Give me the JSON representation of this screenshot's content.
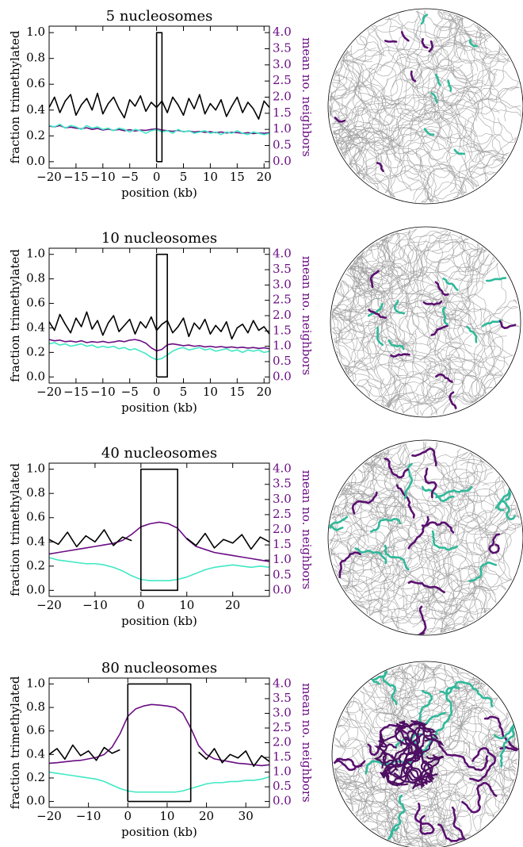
{
  "chart_data": [
    {
      "type": "line",
      "title": "5 nucleosomes",
      "xlabel": "position (kb)",
      "ylabel": "fraction trimethylated",
      "y2label": "mean no. neighbors",
      "xlim": [
        -20,
        21
      ],
      "xticks": [
        {
          "value": -20,
          "label": "−20"
        },
        {
          "value": -15,
          "label": "−15"
        },
        {
          "value": -10,
          "label": "−10"
        },
        {
          "value": -5,
          "label": "−5"
        },
        0,
        5,
        10,
        15,
        20
      ],
      "ylim": [
        -0.05,
        1.05
      ],
      "yticks": [
        {
          "value": 0,
          "label": "0.0"
        },
        0.2,
        0.4,
        0.6,
        0.8,
        {
          "value": 1,
          "label": "1.0"
        }
      ],
      "y2lim": [
        -0.2,
        4.2
      ],
      "y2ticks": [
        {
          "value": 0,
          "label": "0.0"
        },
        0.5,
        {
          "value": 1,
          "label": "1.0"
        },
        1.5,
        {
          "value": 2,
          "label": "2.0"
        },
        2.5,
        {
          "value": 3,
          "label": "3.0"
        },
        3.5,
        {
          "value": 4,
          "label": "4.0"
        }
      ],
      "x": [
        -20,
        -19,
        -18,
        -17,
        -16,
        -15,
        -14,
        -13,
        -12,
        -11,
        -10,
        -9,
        -8,
        -7,
        -6,
        -5,
        -4,
        -3,
        -2,
        -1,
        0,
        1,
        2,
        3,
        4,
        5,
        6,
        7,
        8,
        9,
        10,
        11,
        12,
        13,
        14,
        15,
        16,
        17,
        18,
        19,
        20,
        21
      ],
      "series": [
        {
          "color": "#000000",
          "values": [
            0.42,
            0.5,
            0.38,
            0.47,
            0.52,
            0.36,
            0.44,
            0.49,
            0.4,
            0.53,
            0.37,
            0.45,
            0.5,
            0.41,
            0.34,
            0.48,
            0.43,
            0.51,
            0.39,
            0.46,
            0.42,
            0.47,
            0.38,
            0.5,
            0.44,
            0.36,
            0.49,
            0.41,
            0.52,
            0.37,
            0.45,
            0.4,
            0.48,
            0.35,
            0.43,
            0.5,
            0.38,
            0.46,
            0.41,
            0.33,
            0.47,
            0.42
          ]
        },
        {
          "color": "#40e8c4",
          "values": [
            0.28,
            0.27,
            0.29,
            0.26,
            0.28,
            0.27,
            0.25,
            0.28,
            0.26,
            0.27,
            0.25,
            0.26,
            0.24,
            0.26,
            0.25,
            0.23,
            0.25,
            0.24,
            0.22,
            0.24,
            0.25,
            0.23,
            0.24,
            0.22,
            0.25,
            0.23,
            0.24,
            0.22,
            0.23,
            0.24,
            0.22,
            0.23,
            0.21,
            0.23,
            0.22,
            0.24,
            0.22,
            0.21,
            0.23,
            0.22,
            0.21,
            0.22
          ]
        },
        {
          "color": "#6a0d83",
          "axis": "y2",
          "values": [
            1.1,
            1.08,
            1.12,
            1.05,
            1.07,
            1.04,
            1.02,
            1.05,
            1.0,
            1.03,
            0.98,
            1.01,
            0.97,
            1.0,
            0.96,
            0.99,
            0.95,
            0.98,
            0.97,
            1.0,
            1.02,
            0.98,
            0.96,
            0.94,
            0.97,
            0.93,
            0.95,
            0.92,
            0.94,
            0.91,
            0.93,
            0.9,
            0.92,
            0.89,
            0.91,
            0.9,
            0.88,
            0.9,
            0.87,
            0.89,
            0.88,
            0.9
          ]
        },
        {
          "color": "#000000",
          "x": [
            0,
            0,
            1,
            1,
            0
          ],
          "values": [
            0,
            1,
            1,
            0,
            0
          ]
        }
      ]
    },
    {
      "type": "line",
      "title": "10 nucleosomes",
      "xlabel": "position (kb)",
      "ylabel": "fraction trimethylated",
      "y2label": "mean no. neighbors",
      "xlim": [
        -20,
        21
      ],
      "xticks": [
        {
          "value": -20,
          "label": "−20"
        },
        {
          "value": -15,
          "label": "−15"
        },
        {
          "value": -10,
          "label": "−10"
        },
        {
          "value": -5,
          "label": "−5"
        },
        0,
        5,
        10,
        15,
        20
      ],
      "ylim": [
        -0.05,
        1.05
      ],
      "yticks": [
        {
          "value": 0,
          "label": "0.0"
        },
        0.2,
        0.4,
        0.6,
        0.8,
        {
          "value": 1,
          "label": "1.0"
        }
      ],
      "y2lim": [
        -0.2,
        4.2
      ],
      "y2ticks": [
        {
          "value": 0,
          "label": "0.0"
        },
        0.5,
        {
          "value": 1,
          "label": "1.0"
        },
        1.5,
        {
          "value": 2,
          "label": "2.0"
        },
        2.5,
        {
          "value": 3,
          "label": "3.0"
        },
        3.5,
        {
          "value": 4,
          "label": "4.0"
        }
      ],
      "x": [
        -20,
        -19,
        -18,
        -17,
        -16,
        -15,
        -14,
        -13,
        -12,
        -11,
        -10,
        -9,
        -8,
        -7,
        -6,
        -5,
        -4,
        -3,
        -2,
        -1,
        0,
        1,
        2,
        3,
        4,
        5,
        6,
        7,
        8,
        9,
        10,
        11,
        12,
        13,
        14,
        15,
        16,
        17,
        18,
        19,
        20,
        21
      ],
      "series": [
        {
          "color": "#000000",
          "values": [
            0.45,
            0.38,
            0.51,
            0.43,
            0.36,
            0.48,
            0.41,
            0.53,
            0.39,
            0.46,
            0.34,
            0.44,
            0.5,
            0.37,
            0.42,
            0.47,
            0.35,
            0.45,
            0.4,
            0.49,
            0.38,
            0.43,
            0.46,
            0.36,
            0.41,
            0.48,
            0.33,
            0.44,
            0.39,
            0.47,
            0.35,
            0.42,
            0.37,
            0.45,
            0.31,
            0.4,
            0.43,
            0.36,
            0.46,
            0.38,
            0.41,
            0.35
          ]
        },
        {
          "color": "#40e8c4",
          "values": [
            0.27,
            0.28,
            0.26,
            0.27,
            0.25,
            0.26,
            0.27,
            0.25,
            0.26,
            0.24,
            0.25,
            0.24,
            0.25,
            0.23,
            0.24,
            0.22,
            0.23,
            0.21,
            0.19,
            0.16,
            0.14,
            0.15,
            0.18,
            0.21,
            0.23,
            0.24,
            0.22,
            0.23,
            0.24,
            0.22,
            0.23,
            0.21,
            0.22,
            0.23,
            0.21,
            0.22,
            0.2,
            0.22,
            0.21,
            0.22,
            0.2,
            0.21
          ]
        },
        {
          "color": "#6a0d83",
          "axis": "y2",
          "values": [
            1.22,
            1.18,
            1.2,
            1.15,
            1.17,
            1.14,
            1.18,
            1.12,
            1.15,
            1.13,
            1.16,
            1.12,
            1.14,
            1.18,
            1.15,
            1.2,
            1.22,
            1.18,
            1.1,
            0.95,
            0.85,
            0.9,
            1.05,
            1.08,
            1.05,
            1.02,
            1.04,
            1.0,
            1.02,
            0.98,
            1.0,
            0.97,
            0.99,
            0.96,
            0.98,
            0.95,
            0.97,
            0.94,
            0.96,
            0.93,
            0.95,
            0.92
          ]
        },
        {
          "color": "#000000",
          "x": [
            0,
            0,
            2,
            2,
            0
          ],
          "values": [
            0,
            1,
            1,
            0,
            0
          ]
        }
      ]
    },
    {
      "type": "line",
      "title": "40 nucleosomes",
      "xlabel": "position (kb)",
      "ylabel": "fraction trimethylated",
      "y2label": "mean no. neighbors",
      "xlim": [
        -20,
        28
      ],
      "xticks": [
        {
          "value": -20,
          "label": "−20"
        },
        {
          "value": -10,
          "label": "−10"
        },
        0,
        10,
        20
      ],
      "ylim": [
        -0.05,
        1.05
      ],
      "yticks": [
        {
          "value": 0,
          "label": "0.0"
        },
        0.2,
        0.4,
        0.6,
        0.8,
        {
          "value": 1,
          "label": "1.0"
        }
      ],
      "y2lim": [
        -0.2,
        4.2
      ],
      "y2ticks": [
        {
          "value": 0,
          "label": "0.0"
        },
        0.5,
        {
          "value": 1,
          "label": "1.0"
        },
        1.5,
        {
          "value": 2,
          "label": "2.0"
        },
        2.5,
        {
          "value": 3,
          "label": "3.0"
        },
        3.5,
        {
          "value": 4,
          "label": "4.0"
        }
      ],
      "x": [
        -20,
        -18,
        -16,
        -14,
        -12,
        -10,
        -8,
        -6,
        -4,
        -2,
        0,
        2,
        4,
        6,
        8,
        10,
        12,
        14,
        16,
        18,
        20,
        22,
        24,
        26,
        28
      ],
      "series": [
        {
          "color": "#000000",
          "values": [
            0.42,
            0.38,
            0.48,
            0.36,
            0.45,
            0.4,
            0.5,
            0.37,
            0.44,
            0.41,
            null,
            null,
            null,
            null,
            null,
            0.43,
            0.37,
            0.47,
            0.35,
            0.42,
            0.39,
            0.46,
            0.34,
            0.44,
            0.4
          ]
        },
        {
          "color": "#40e8c4",
          "values": [
            0.27,
            0.25,
            0.24,
            0.23,
            0.22,
            0.22,
            0.21,
            0.19,
            0.16,
            0.12,
            0.09,
            0.08,
            0.08,
            0.08,
            0.09,
            0.11,
            0.14,
            0.17,
            0.19,
            0.2,
            0.21,
            0.2,
            0.19,
            0.2,
            0.19
          ]
        },
        {
          "color": "#6a0d83",
          "axis": "y2",
          "values": [
            1.2,
            1.25,
            1.3,
            1.35,
            1.4,
            1.45,
            1.5,
            1.55,
            1.65,
            1.85,
            2.1,
            2.2,
            2.25,
            2.2,
            2.05,
            1.7,
            1.45,
            1.35,
            1.25,
            1.2,
            1.15,
            1.1,
            1.05,
            1.0,
            0.95
          ]
        },
        {
          "color": "#000000",
          "x": [
            0,
            0,
            8,
            8,
            0
          ],
          "values": [
            0,
            1,
            1,
            0,
            0
          ]
        }
      ]
    },
    {
      "type": "line",
      "title": "80 nucleosomes",
      "xlabel": "position (kb)",
      "ylabel": "fraction trimethylated",
      "y2label": "mean no. neighbors",
      "xlim": [
        -20,
        36
      ],
      "xticks": [
        {
          "value": -20,
          "label": "−20"
        },
        {
          "value": -10,
          "label": "−10"
        },
        0,
        10,
        20,
        30
      ],
      "ylim": [
        -0.05,
        1.05
      ],
      "yticks": [
        {
          "value": 0,
          "label": "0.0"
        },
        0.2,
        0.4,
        0.6,
        0.8,
        {
          "value": 1,
          "label": "1.0"
        }
      ],
      "y2lim": [
        -0.2,
        4.2
      ],
      "y2ticks": [
        {
          "value": 0,
          "label": "0.0"
        },
        0.5,
        {
          "value": 1,
          "label": "1.0"
        },
        1.5,
        {
          "value": 2,
          "label": "2.0"
        },
        2.5,
        {
          "value": 3,
          "label": "3.0"
        },
        3.5,
        {
          "value": 4,
          "label": "4.0"
        }
      ],
      "x": [
        -20,
        -18,
        -16,
        -14,
        -12,
        -10,
        -8,
        -6,
        -4,
        -2,
        0,
        2,
        4,
        6,
        8,
        10,
        12,
        14,
        16,
        18,
        20,
        22,
        24,
        26,
        28,
        30,
        32,
        34,
        36
      ],
      "series": [
        {
          "color": "#000000",
          "values": [
            0.4,
            0.45,
            0.36,
            0.48,
            0.39,
            0.43,
            0.35,
            0.46,
            0.41,
            0.44,
            null,
            null,
            null,
            null,
            null,
            null,
            null,
            null,
            null,
            0.42,
            0.36,
            0.45,
            0.33,
            0.4,
            0.37,
            0.43,
            0.3,
            0.39,
            0.34
          ]
        },
        {
          "color": "#40e8c4",
          "values": [
            0.25,
            0.24,
            0.23,
            0.22,
            0.21,
            0.2,
            0.19,
            0.17,
            0.14,
            0.11,
            0.09,
            0.08,
            0.08,
            0.08,
            0.08,
            0.08,
            0.08,
            0.09,
            0.11,
            0.13,
            0.15,
            0.16,
            0.16,
            0.17,
            0.17,
            0.18,
            0.18,
            0.19,
            0.21
          ]
        },
        {
          "color": "#6a0d83",
          "axis": "y2",
          "values": [
            1.3,
            1.32,
            1.35,
            1.38,
            1.4,
            1.45,
            1.5,
            1.6,
            1.85,
            2.3,
            2.9,
            3.15,
            3.25,
            3.3,
            3.28,
            3.25,
            3.2,
            3.0,
            2.5,
            1.9,
            1.6,
            1.45,
            1.4,
            1.35,
            1.3,
            1.28,
            1.25,
            1.22,
            1.25
          ]
        },
        {
          "color": "#000000",
          "x": [
            0,
            0,
            16,
            16,
            0
          ],
          "values": [
            0,
            1,
            1,
            0,
            0
          ]
        }
      ]
    }
  ]
}
